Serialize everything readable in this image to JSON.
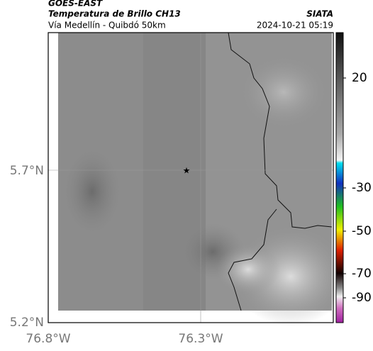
{
  "header": {
    "title": "GOES-EAST",
    "subtitle": "Temperatura de Brillo CH13",
    "source": "SIATA",
    "location": "Vía Medellín - Quibdó 50km",
    "timestamp": "2024-10-21 05:19"
  },
  "map": {
    "lat_ticks": [
      "5.7°N",
      "5.2°N"
    ],
    "lon_ticks": [
      "76.8°W",
      "76.3°W"
    ]
  },
  "colorbar": {
    "ticks": [
      20,
      -30,
      -50,
      -70,
      -90
    ]
  }
}
